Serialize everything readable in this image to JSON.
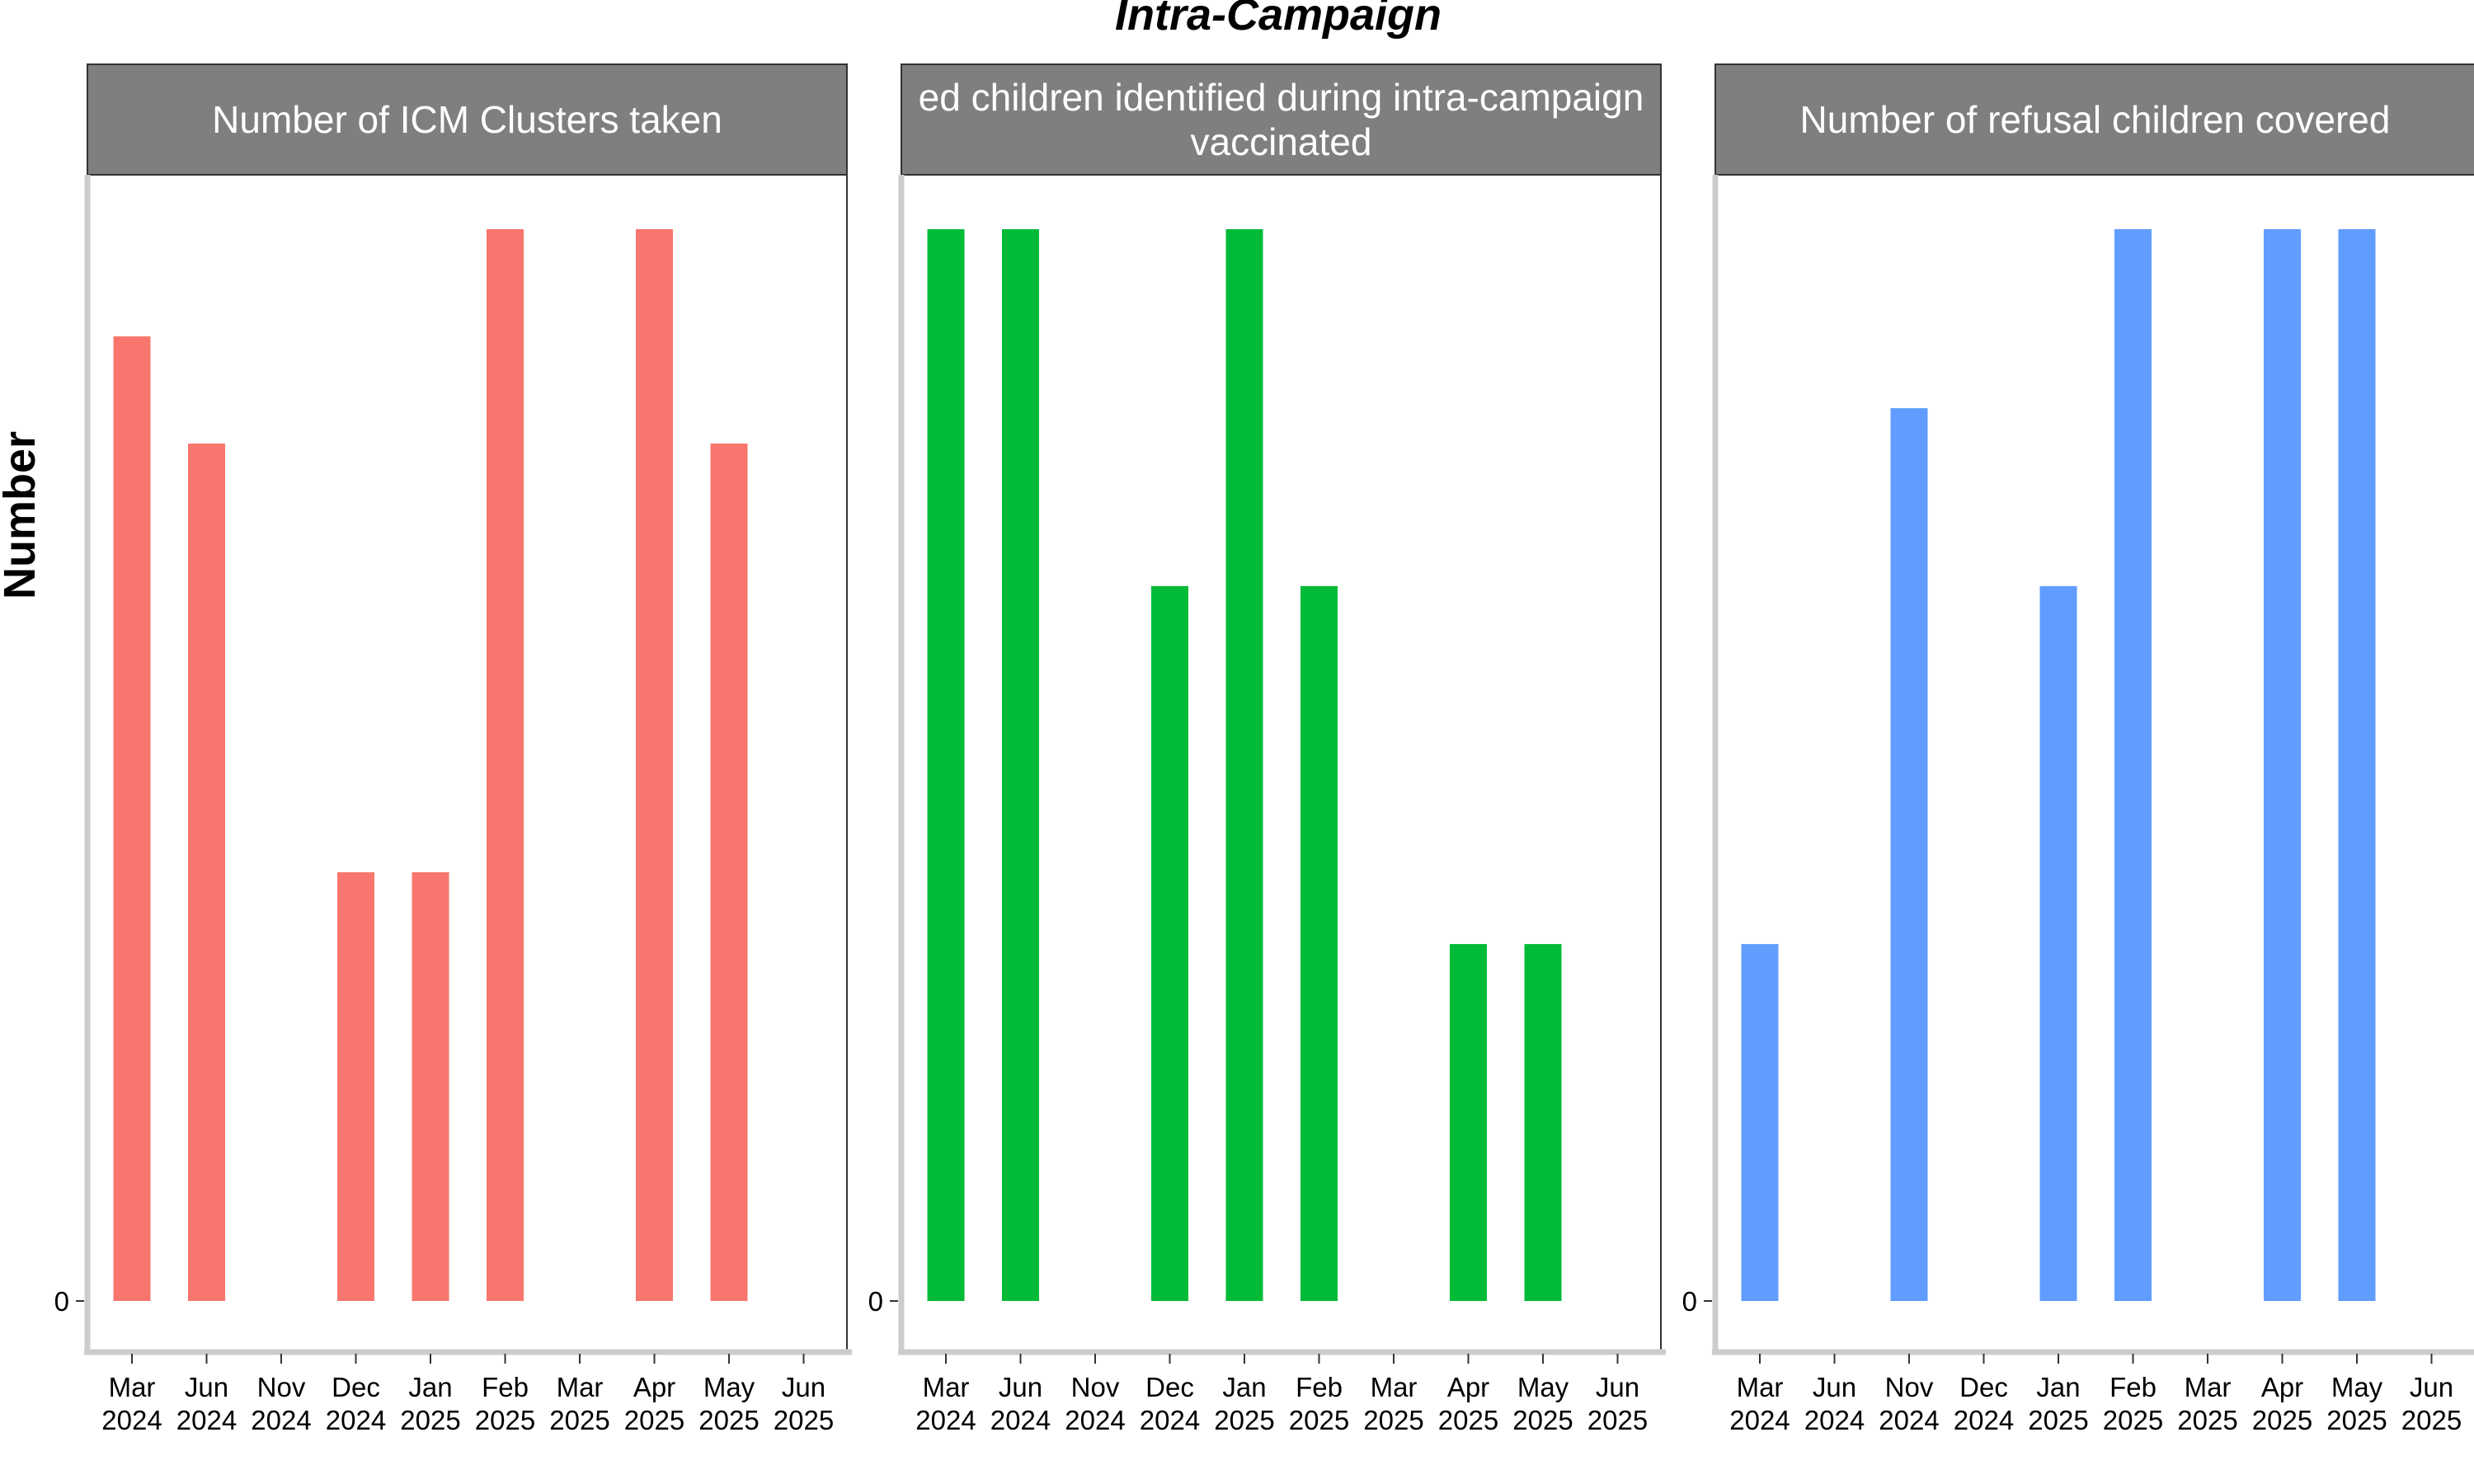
{
  "chart_data": {
    "type": "bar",
    "title": "Intra-Campaign",
    "ylabel": "Number",
    "y_tick_labels": [
      "0"
    ],
    "ylim": [
      0,
      1.05
    ],
    "x_tick_labels": [
      [
        "Mar",
        "2024"
      ],
      [
        "Jun",
        "2024"
      ],
      [
        "Nov",
        "2024"
      ],
      [
        "Dec",
        "2024"
      ],
      [
        "Jan",
        "2025"
      ],
      [
        "Feb",
        "2025"
      ],
      [
        "Mar",
        "2025"
      ],
      [
        "Apr",
        "2025"
      ],
      [
        "May",
        "2025"
      ],
      [
        "Jun",
        "2025"
      ]
    ],
    "panels": [
      {
        "strip": [
          "Number of ICM Clusters taken"
        ],
        "color": "#F8766D",
        "categories": [
          "Mar 2024",
          "Jun 2024",
          "Nov 2024",
          "Dec 2024",
          "Jan 2025",
          "Feb 2025",
          "Mar 2025",
          "Apr 2025",
          "May 2025",
          "Jun 2025"
        ],
        "values": [
          0.9,
          0.8,
          null,
          0.4,
          0.4,
          1.0,
          null,
          1.0,
          0.8,
          null
        ]
      },
      {
        "strip": [
          "ed children identified during intra-campaign",
          "vaccinated"
        ],
        "color": "#00BA38",
        "categories": [
          "Mar 2024",
          "Jun 2024",
          "Nov 2024",
          "Dec 2024",
          "Jan 2025",
          "Feb 2025",
          "Mar 2025",
          "Apr 2025",
          "May 2025",
          "Jun 2025"
        ],
        "values": [
          1.0,
          1.0,
          null,
          0.667,
          1.0,
          0.667,
          null,
          0.333,
          0.333,
          null
        ]
      },
      {
        "strip": [
          "Number of refusal children covered"
        ],
        "color": "#619CFF",
        "categories": [
          "Mar 2024",
          "Jun 2024",
          "Nov 2024",
          "Dec 2024",
          "Jan 2025",
          "Feb 2025",
          "Mar 2025",
          "Apr 2025",
          "May 2025",
          "Jun 2025"
        ],
        "values": [
          0.333,
          null,
          0.833,
          null,
          0.667,
          1.0,
          null,
          1.0,
          1.0,
          null
        ]
      }
    ]
  }
}
